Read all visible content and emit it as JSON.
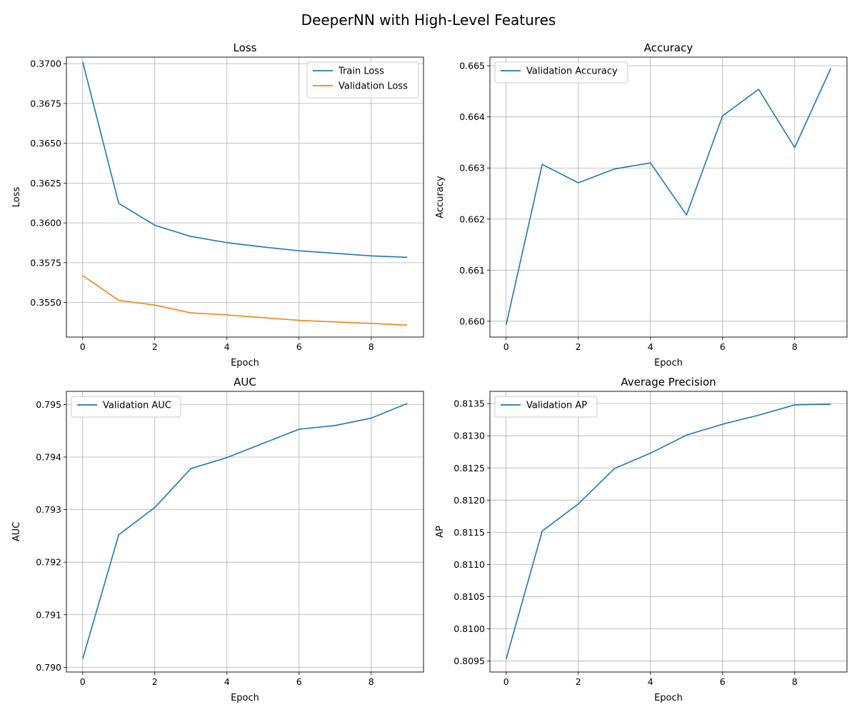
{
  "figure": {
    "title": "DeeperNN with High-Level Features"
  },
  "colors": {
    "series_blue": "#1f77b4",
    "series_orange": "#ff7f0e",
    "grid": "#b0b0b0",
    "axis": "#000000"
  },
  "chart_data": [
    {
      "type": "line",
      "title": "Loss",
      "xlabel": "Epoch",
      "ylabel": "Loss",
      "x": [
        0,
        1,
        2,
        3,
        4,
        5,
        6,
        7,
        8,
        9
      ],
      "xlim": [
        -0.45,
        9.45
      ],
      "ylim": [
        0.35283,
        0.37041
      ],
      "xticks": [
        0,
        2,
        4,
        6,
        8
      ],
      "xtick_labels": [
        "0",
        "2",
        "4",
        "6",
        "8"
      ],
      "yticks": [
        0.355,
        0.3575,
        0.36,
        0.3625,
        0.365,
        0.3675,
        0.37
      ],
      "ytick_labels": [
        "0.3550",
        "0.3575",
        "0.3600",
        "0.3625",
        "0.3650",
        "0.3675",
        "0.3700"
      ],
      "grid": true,
      "legend": "upper right",
      "series": [
        {
          "name": "Train Loss",
          "color": "#1f77b4",
          "values": [
            0.37012,
            0.36123,
            0.35985,
            0.35915,
            0.35876,
            0.35849,
            0.35825,
            0.35809,
            0.35793,
            0.35784
          ]
        },
        {
          "name": "Validation Loss",
          "color": "#ff7f0e",
          "values": [
            0.3567,
            0.35514,
            0.35484,
            0.35435,
            0.35422,
            0.35405,
            0.35388,
            0.35378,
            0.35369,
            0.35358
          ]
        }
      ]
    },
    {
      "type": "line",
      "title": "Accuracy",
      "xlabel": "Epoch",
      "ylabel": "Accuracy",
      "x": [
        0,
        1,
        2,
        3,
        4,
        5,
        6,
        7,
        8,
        9
      ],
      "xlim": [
        -0.45,
        9.45
      ],
      "ylim": [
        0.65969,
        0.66517
      ],
      "xticks": [
        0,
        2,
        4,
        6,
        8
      ],
      "xtick_labels": [
        "0",
        "2",
        "4",
        "6",
        "8"
      ],
      "yticks": [
        0.66,
        0.661,
        0.662,
        0.663,
        0.664,
        0.665
      ],
      "ytick_labels": [
        "0.660",
        "0.661",
        "0.662",
        "0.663",
        "0.664",
        "0.665"
      ],
      "grid": true,
      "legend": "upper left",
      "series": [
        {
          "name": "Validation Accuracy",
          "color": "#1f77b4",
          "values": [
            0.65993,
            0.66307,
            0.66271,
            0.66298,
            0.6631,
            0.66208,
            0.66402,
            0.66454,
            0.6634,
            0.66495
          ]
        }
      ]
    },
    {
      "type": "line",
      "title": "AUC",
      "xlabel": "Epoch",
      "ylabel": "AUC",
      "x": [
        0,
        1,
        2,
        3,
        4,
        5,
        6,
        7,
        8,
        9
      ],
      "xlim": [
        -0.45,
        9.45
      ],
      "ylim": [
        0.78991,
        0.79525
      ],
      "xticks": [
        0,
        2,
        4,
        6,
        8
      ],
      "xtick_labels": [
        "0",
        "2",
        "4",
        "6",
        "8"
      ],
      "yticks": [
        0.79,
        0.791,
        0.792,
        0.793,
        0.794,
        0.795
      ],
      "ytick_labels": [
        "0.790",
        "0.791",
        "0.792",
        "0.793",
        "0.794",
        "0.795"
      ],
      "grid": true,
      "legend": "upper left",
      "series": [
        {
          "name": "Validation AUC",
          "color": "#1f77b4",
          "values": [
            0.79016,
            0.79252,
            0.79304,
            0.79378,
            0.79399,
            0.79426,
            0.79453,
            0.7946,
            0.79474,
            0.79502
          ]
        }
      ]
    },
    {
      "type": "line",
      "title": "Average Precision",
      "xlabel": "Epoch",
      "ylabel": "AP",
      "x": [
        0,
        1,
        2,
        3,
        4,
        5,
        6,
        7,
        8,
        9
      ],
      "xlim": [
        -0.45,
        9.45
      ],
      "ylim": [
        0.80933,
        0.81369
      ],
      "xticks": [
        0,
        2,
        4,
        6,
        8
      ],
      "xtick_labels": [
        "0",
        "2",
        "4",
        "6",
        "8"
      ],
      "yticks": [
        0.8095,
        0.81,
        0.8105,
        0.811,
        0.8115,
        0.812,
        0.8125,
        0.813,
        0.8135
      ],
      "ytick_labels": [
        "0.8095",
        "0.8100",
        "0.8105",
        "0.8110",
        "0.8115",
        "0.8120",
        "0.8125",
        "0.8130",
        "0.8135"
      ],
      "grid": true,
      "legend": "upper left",
      "series": [
        {
          "name": "Validation AP",
          "color": "#1f77b4",
          "values": [
            0.80953,
            0.81152,
            0.81194,
            0.81249,
            0.81273,
            0.81301,
            0.81318,
            0.81332,
            0.81348,
            0.81349
          ]
        }
      ]
    }
  ]
}
